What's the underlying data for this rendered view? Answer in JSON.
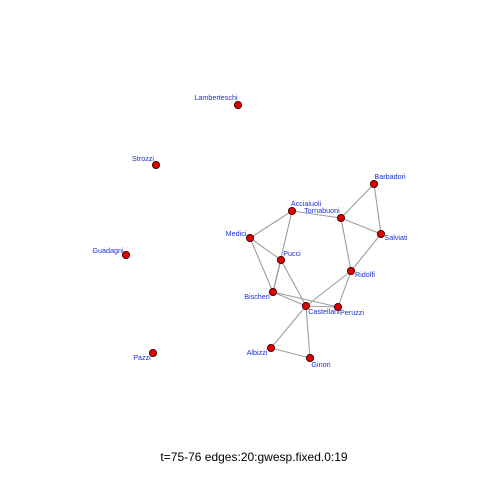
{
  "caption": "t=75-76 edges:20:gwesp.fixed.0:19",
  "colors": {
    "node_fill": "#e00000",
    "node_stroke": "#3a0000",
    "edge": "#9e9e9e",
    "label": "#1f2fd6"
  },
  "nodes": [
    {
      "id": "lamberteschi",
      "label": "Lamberteschi"
    },
    {
      "id": "strozzi",
      "label": "Strozzi"
    },
    {
      "id": "guadagni",
      "label": "Guadagni"
    },
    {
      "id": "pazzi",
      "label": "Pazzi"
    },
    {
      "id": "barbadori",
      "label": "Barbadori"
    },
    {
      "id": "acciaiuoli",
      "label": "Acciaiuoli"
    },
    {
      "id": "tornabuoni",
      "label": "Tornabuoni"
    },
    {
      "id": "salviati",
      "label": "Salviati"
    },
    {
      "id": "medici",
      "label": "Medici"
    },
    {
      "id": "pucci",
      "label": "Pucci"
    },
    {
      "id": "ridolfi",
      "label": "Ridolfi"
    },
    {
      "id": "bischeri",
      "label": "Bischeri"
    },
    {
      "id": "castellani",
      "label": "Castellani"
    },
    {
      "id": "peruzzi",
      "label": "Peruzzi"
    },
    {
      "id": "albizzi",
      "label": "Albizzi"
    },
    {
      "id": "ginori",
      "label": "Ginori"
    }
  ],
  "edges": [
    [
      "medici",
      "acciaiuoli"
    ],
    [
      "medici",
      "pucci"
    ],
    [
      "medici",
      "bischeri"
    ],
    [
      "acciaiuoli",
      "bischeri"
    ],
    [
      "pucci",
      "bischeri"
    ],
    [
      "pucci",
      "castellani"
    ],
    [
      "bischeri",
      "castellani"
    ],
    [
      "bischeri",
      "peruzzi"
    ],
    [
      "castellani",
      "peruzzi"
    ],
    [
      "castellani",
      "ridolfi"
    ],
    [
      "castellani",
      "albizzi"
    ],
    [
      "castellani",
      "ginori"
    ],
    [
      "albizzi",
      "ginori"
    ],
    [
      "peruzzi",
      "ridolfi"
    ],
    [
      "ridolfi",
      "tornabuoni"
    ],
    [
      "tornabuoni",
      "barbadori"
    ],
    [
      "tornabuoni",
      "salviati"
    ],
    [
      "barbadori",
      "salviati"
    ],
    [
      "acciaiuoli",
      "tornabuoni"
    ],
    [
      "salviati",
      "ridolfi"
    ]
  ]
}
